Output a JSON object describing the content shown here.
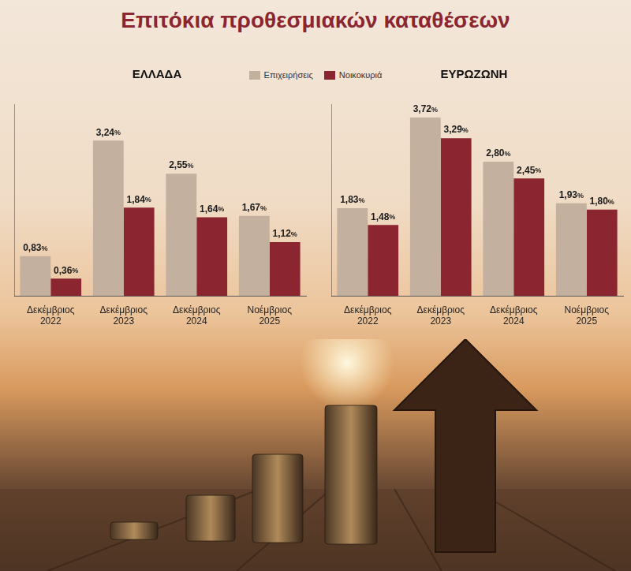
{
  "title": "Επιτόκια προθεσμιακών καταθέσεων",
  "chart_data": [
    {
      "type": "bar",
      "title": "ΕΛΛΑΔΑ",
      "categories": [
        "Δεκέμβριος 2022",
        "Δεκέμβριος 2023",
        "Δεκέμβριος 2024",
        "Νοέμβριος 2025"
      ],
      "series": [
        {
          "name": "Επιχειρήσεις",
          "color": "#c4b09f",
          "values": [
            0.83,
            3.24,
            2.55,
            1.67
          ],
          "value_labels": [
            "0,83%",
            "3,24%",
            "2,55%",
            "1,67%"
          ]
        },
        {
          "name": "Νοικοκυριά",
          "color": "#8b2530",
          "values": [
            0.36,
            1.84,
            1.64,
            1.12
          ],
          "value_labels": [
            "0,36%",
            "1,84%",
            "1,64%",
            "1,12%"
          ]
        }
      ],
      "ylim": [
        0,
        4
      ],
      "grid": false,
      "tick_labels": "x",
      "data_labels": true,
      "legend": "top"
    },
    {
      "type": "bar",
      "title": "ΕΥΡΩΖΩΝΗ",
      "categories": [
        "Δεκέμβριος 2022",
        "Δεκέμβριος 2023",
        "Δεκέμβριος 2024",
        "Νοέμβριος 2025"
      ],
      "series": [
        {
          "name": "Επιχειρήσεις",
          "color": "#c4b09f",
          "values": [
            1.83,
            3.72,
            2.8,
            1.93
          ],
          "value_labels": [
            "1,83%",
            "3,72%",
            "2,80%",
            "1,93%"
          ]
        },
        {
          "name": "Νοικοκυριά",
          "color": "#8b2530",
          "values": [
            1.48,
            3.29,
            2.45,
            1.8
          ],
          "value_labels": [
            "1,48%",
            "3,29%",
            "2,45%",
            "1,80%"
          ]
        }
      ],
      "ylim": [
        0,
        4
      ],
      "grid": false,
      "tick_labels": "x",
      "data_labels": true,
      "legend": "top"
    }
  ]
}
